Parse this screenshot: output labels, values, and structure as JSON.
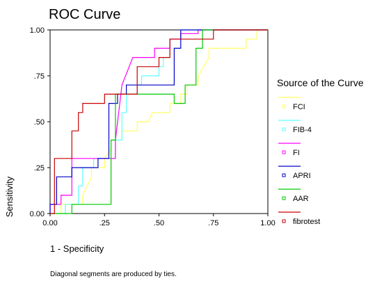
{
  "chart_data": {
    "type": "line",
    "title": "ROC Curve",
    "xlabel": "1 - Specificity",
    "ylabel": "Sensitivity",
    "xlim": [
      0,
      1
    ],
    "ylim": [
      0,
      1
    ],
    "x_ticks": [
      "0.00",
      ".25",
      ".50",
      ".75",
      "1.00"
    ],
    "y_ticks": [
      "0.00",
      ".25",
      ".50",
      ".75",
      "1.00"
    ],
    "legend_title": "Source of the Curve",
    "legend_placement": "right",
    "footnote": "Diagonal segments are produced by ties.",
    "grid": false,
    "series": [
      {
        "name": "FCI",
        "color": "#ffff60",
        "x": [
          0.0,
          0.05,
          0.05,
          0.15,
          0.15,
          0.19,
          0.19,
          0.25,
          0.25,
          0.28,
          0.28,
          0.33,
          0.33,
          0.37,
          0.37,
          0.4,
          0.4,
          0.45,
          0.47,
          0.5,
          0.55,
          0.55,
          0.6,
          0.6,
          0.63,
          0.63,
          0.68,
          0.68,
          0.73,
          0.73,
          0.85,
          0.9,
          0.9,
          0.95,
          0.95,
          1.0
        ],
        "y": [
          0.0,
          0.0,
          0.05,
          0.05,
          0.1,
          0.2,
          0.25,
          0.25,
          0.3,
          0.35,
          0.4,
          0.4,
          0.45,
          0.45,
          0.45,
          0.45,
          0.5,
          0.5,
          0.55,
          0.55,
          0.55,
          0.6,
          0.6,
          0.65,
          0.65,
          0.7,
          0.7,
          0.75,
          0.85,
          0.9,
          0.9,
          0.9,
          0.95,
          0.95,
          1.0,
          1.0
        ]
      },
      {
        "name": "FIB-4",
        "color": "#60ffff",
        "x": [
          0.0,
          0.07,
          0.07,
          0.13,
          0.13,
          0.15,
          0.15,
          0.2,
          0.2,
          0.3,
          0.3,
          0.33,
          0.33,
          0.35,
          0.35,
          0.4,
          0.4,
          0.42,
          0.42,
          0.5,
          0.5,
          0.52,
          0.52,
          0.55,
          0.55,
          0.6,
          0.6,
          0.63,
          0.63,
          0.7,
          0.7,
          1.0
        ],
        "y": [
          0.0,
          0.0,
          0.05,
          0.05,
          0.15,
          0.15,
          0.25,
          0.25,
          0.3,
          0.3,
          0.4,
          0.4,
          0.55,
          0.55,
          0.65,
          0.65,
          0.7,
          0.7,
          0.75,
          0.75,
          0.8,
          0.8,
          0.85,
          0.85,
          0.95,
          0.95,
          1.0,
          1.0,
          1.0,
          1.0,
          1.0,
          1.0
        ]
      },
      {
        "name": "FI",
        "color": "#ff00ff",
        "x": [
          0.0,
          0.0,
          0.05,
          0.05,
          0.1,
          0.1,
          0.3,
          0.3,
          0.33,
          0.38,
          0.48,
          0.48,
          0.55,
          0.55,
          0.6,
          0.6,
          0.68,
          0.68,
          1.0
        ],
        "y": [
          0.0,
          0.05,
          0.05,
          0.1,
          0.1,
          0.3,
          0.3,
          0.4,
          0.7,
          0.85,
          0.85,
          0.9,
          0.9,
          0.95,
          0.95,
          0.98,
          0.98,
          1.0,
          1.0
        ]
      },
      {
        "name": "APRI",
        "color": "#0000c8",
        "x": [
          0.0,
          0.0,
          0.03,
          0.03,
          0.1,
          0.1,
          0.15,
          0.15,
          0.22,
          0.22,
          0.27,
          0.27,
          0.31,
          0.31,
          0.35,
          0.35,
          0.57,
          0.57,
          0.6,
          0.6,
          1.0
        ],
        "y": [
          0.0,
          0.05,
          0.05,
          0.2,
          0.2,
          0.25,
          0.25,
          0.25,
          0.25,
          0.3,
          0.3,
          0.6,
          0.6,
          0.65,
          0.65,
          0.7,
          0.7,
          0.9,
          0.9,
          1.0,
          1.0
        ]
      },
      {
        "name": "AAR",
        "color": "#00c800",
        "x": [
          0.0,
          0.1,
          0.1,
          0.28,
          0.28,
          0.3,
          0.3,
          0.38,
          0.38,
          0.57,
          0.57,
          0.62,
          0.62,
          0.67,
          0.67,
          0.7,
          0.7,
          1.0
        ],
        "y": [
          0.0,
          0.0,
          0.05,
          0.05,
          0.4,
          0.4,
          0.65,
          0.65,
          0.65,
          0.65,
          0.6,
          0.6,
          0.7,
          0.7,
          0.9,
          0.9,
          1.0,
          1.0
        ]
      },
      {
        "name": "fibrotest",
        "color": "#c80000",
        "x": [
          0.0,
          0.02,
          0.02,
          0.08,
          0.08,
          0.1,
          0.1,
          0.13,
          0.13,
          0.15,
          0.15,
          0.25,
          0.25,
          0.4,
          0.4,
          0.5,
          0.5,
          0.55,
          0.55,
          0.75,
          0.75,
          1.0
        ],
        "y": [
          0.0,
          0.0,
          0.3,
          0.3,
          0.3,
          0.3,
          0.45,
          0.45,
          0.55,
          0.55,
          0.6,
          0.6,
          0.65,
          0.65,
          0.8,
          0.8,
          0.85,
          0.85,
          0.95,
          0.95,
          1.0,
          1.0
        ]
      }
    ]
  }
}
